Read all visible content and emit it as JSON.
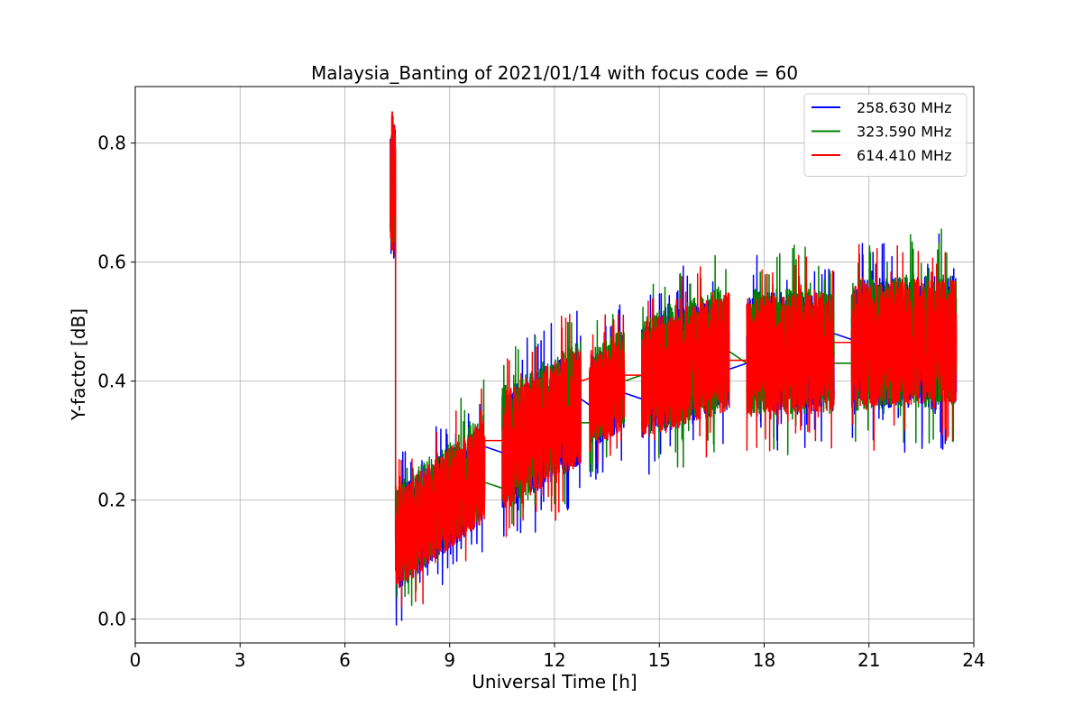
{
  "chart_data": {
    "type": "line",
    "title": "Malaysia_Banting of 2021/01/14 with focus code = 60",
    "xlabel": "Universal Time [h]",
    "ylabel": "Y-factor [dB]",
    "xlim": [
      0,
      24
    ],
    "ylim": [
      -0.04,
      0.895
    ],
    "xticks": [
      0,
      3,
      6,
      9,
      12,
      15,
      18,
      21,
      24
    ],
    "xtick_labels": [
      "0",
      "3",
      "6",
      "9",
      "12",
      "15",
      "18",
      "21",
      "24"
    ],
    "yticks": [
      0.0,
      0.2,
      0.4,
      0.6,
      0.8
    ],
    "ytick_labels": [
      "0.0",
      "0.2",
      "0.4",
      "0.6",
      "0.8"
    ],
    "grid": true,
    "legend": "top-right",
    "series": [
      {
        "name": "258.630 MHz",
        "color": "#0000ff",
        "segments": [
          {
            "x_start": 7.3,
            "x_end": 7.45,
            "y_min": 0.6,
            "y_max": 0.84
          },
          {
            "x_start": 7.45,
            "x_end": 10.0,
            "y_start_mean": 0.13,
            "y_end_mean": 0.25,
            "y_spread": 0.17
          },
          {
            "x_start": 10.5,
            "x_end": 12.75,
            "y_start_mean": 0.28,
            "y_end_mean": 0.36,
            "y_spread": 0.2
          },
          {
            "x_start": 13.0,
            "x_end": 14.0,
            "y_start_mean": 0.36,
            "y_end_mean": 0.4,
            "y_spread": 0.16
          },
          {
            "x_start": 14.5,
            "x_end": 17.0,
            "y_start_mean": 0.4,
            "y_end_mean": 0.45,
            "y_spread": 0.2
          },
          {
            "x_start": 17.5,
            "x_end": 20.0,
            "y_start_mean": 0.45,
            "y_end_mean": 0.45,
            "y_spread": 0.2
          },
          {
            "x_start": 20.5,
            "x_end": 23.5,
            "y_start_mean": 0.46,
            "y_end_mean": 0.47,
            "y_spread": 0.22
          }
        ],
        "bridges": [
          [
            10.0,
            0.29,
            10.5,
            0.28
          ],
          [
            12.75,
            0.37,
            13.0,
            0.36
          ],
          [
            14.0,
            0.38,
            14.5,
            0.37
          ],
          [
            17.0,
            0.42,
            17.5,
            0.43
          ],
          [
            20.0,
            0.48,
            20.5,
            0.47
          ]
        ]
      },
      {
        "name": "323.590 MHz",
        "color": "#008000",
        "segments": [
          {
            "x_start": 7.3,
            "x_end": 7.45,
            "y_min": 0.62,
            "y_max": 0.82
          },
          {
            "x_start": 7.45,
            "x_end": 10.0,
            "y_start_mean": 0.14,
            "y_end_mean": 0.26,
            "y_spread": 0.17
          },
          {
            "x_start": 10.5,
            "x_end": 12.75,
            "y_start_mean": 0.29,
            "y_end_mean": 0.37,
            "y_spread": 0.2
          },
          {
            "x_start": 13.0,
            "x_end": 14.0,
            "y_start_mean": 0.37,
            "y_end_mean": 0.41,
            "y_spread": 0.16
          },
          {
            "x_start": 14.5,
            "x_end": 17.0,
            "y_start_mean": 0.41,
            "y_end_mean": 0.46,
            "y_spread": 0.21
          },
          {
            "x_start": 17.5,
            "x_end": 20.0,
            "y_start_mean": 0.45,
            "y_end_mean": 0.45,
            "y_spread": 0.21
          },
          {
            "x_start": 20.5,
            "x_end": 23.5,
            "y_start_mean": 0.46,
            "y_end_mean": 0.47,
            "y_spread": 0.22
          }
        ],
        "bridges": [
          [
            10.0,
            0.23,
            10.5,
            0.22
          ],
          [
            12.75,
            0.33,
            13.0,
            0.33
          ],
          [
            14.0,
            0.4,
            14.5,
            0.41
          ],
          [
            17.0,
            0.45,
            17.5,
            0.43
          ],
          [
            20.0,
            0.43,
            20.5,
            0.43
          ]
        ]
      },
      {
        "name": "614.410 MHz",
        "color": "#ff0000",
        "segments": [
          {
            "x_start": 7.3,
            "x_end": 7.45,
            "y_min": 0.59,
            "y_max": 0.855
          },
          {
            "x_start": 7.45,
            "x_end": 10.0,
            "y_start_mean": 0.13,
            "y_end_mean": 0.25,
            "y_spread": 0.17
          },
          {
            "x_start": 10.5,
            "x_end": 12.75,
            "y_start_mean": 0.28,
            "y_end_mean": 0.36,
            "y_spread": 0.2
          },
          {
            "x_start": 13.0,
            "x_end": 14.0,
            "y_start_mean": 0.36,
            "y_end_mean": 0.4,
            "y_spread": 0.16
          },
          {
            "x_start": 14.5,
            "x_end": 17.0,
            "y_start_mean": 0.4,
            "y_end_mean": 0.45,
            "y_spread": 0.2
          },
          {
            "x_start": 17.5,
            "x_end": 20.0,
            "y_start_mean": 0.44,
            "y_end_mean": 0.45,
            "y_spread": 0.2
          },
          {
            "x_start": 20.5,
            "x_end": 23.5,
            "y_start_mean": 0.46,
            "y_end_mean": 0.47,
            "y_spread": 0.21
          }
        ],
        "bridges": [
          [
            10.0,
            0.3,
            10.5,
            0.3
          ],
          [
            12.75,
            0.4,
            13.0,
            0.405
          ],
          [
            14.0,
            0.41,
            14.5,
            0.41
          ],
          [
            17.0,
            0.435,
            17.5,
            0.435
          ],
          [
            20.0,
            0.465,
            20.5,
            0.465
          ]
        ]
      }
    ]
  }
}
